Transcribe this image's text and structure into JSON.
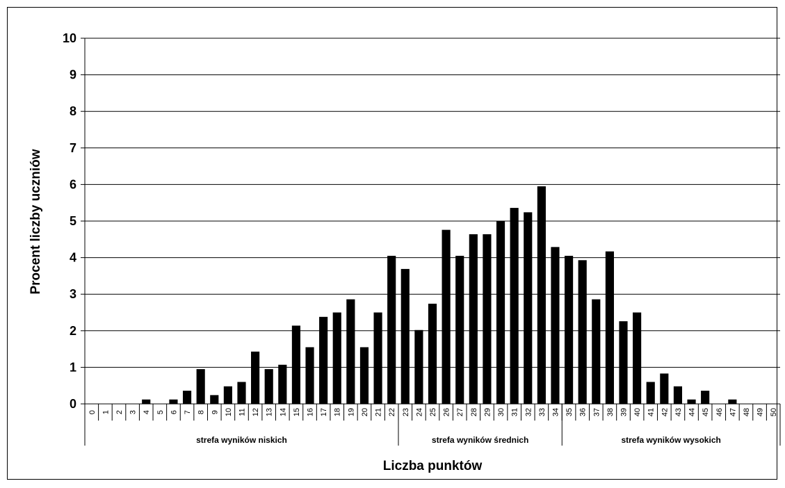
{
  "chart_data": {
    "type": "bar",
    "xlabel": "Liczba punktów",
    "ylabel": "Procent liczby uczniów",
    "ylim": [
      0,
      10
    ],
    "yticks": [
      "0",
      "1",
      "2",
      "3",
      "4",
      "5",
      "6",
      "7",
      "8",
      "9",
      "10"
    ],
    "grid": true,
    "bar_color": "#000000",
    "categories": [
      "0",
      "1",
      "2",
      "3",
      "4",
      "5",
      "6",
      "7",
      "8",
      "9",
      "10",
      "11",
      "12",
      "13",
      "14",
      "15",
      "16",
      "17",
      "18",
      "19",
      "20",
      "21",
      "22",
      "23",
      "24",
      "25",
      "26",
      "27",
      "28",
      "29",
      "30",
      "31",
      "32",
      "33",
      "34",
      "35",
      "36",
      "37",
      "38",
      "39",
      "40",
      "41",
      "42",
      "43",
      "44",
      "45",
      "46",
      "47",
      "48",
      "49",
      "50"
    ],
    "values": [
      0,
      0,
      0,
      0,
      0.12,
      0,
      0.12,
      0.36,
      0.95,
      0.24,
      0.48,
      0.6,
      1.43,
      0.95,
      1.07,
      2.14,
      1.55,
      2.38,
      2.5,
      2.86,
      1.55,
      2.5,
      4.05,
      3.69,
      2.02,
      2.74,
      4.76,
      4.05,
      4.64,
      4.64,
      5.0,
      5.36,
      5.24,
      5.95,
      4.29,
      4.05,
      3.93,
      2.86,
      4.17,
      2.26,
      2.5,
      0.6,
      0.83,
      0.48,
      0.12,
      0.36,
      0,
      0.12,
      0,
      0,
      0
    ],
    "zones": [
      {
        "label": "strefa wyników niskich",
        "from": 0,
        "to": 22
      },
      {
        "label": "strefa wyników średnich",
        "from": 23,
        "to": 34
      },
      {
        "label": "strefa wyników wysokich",
        "from": 35,
        "to": 50
      }
    ]
  }
}
